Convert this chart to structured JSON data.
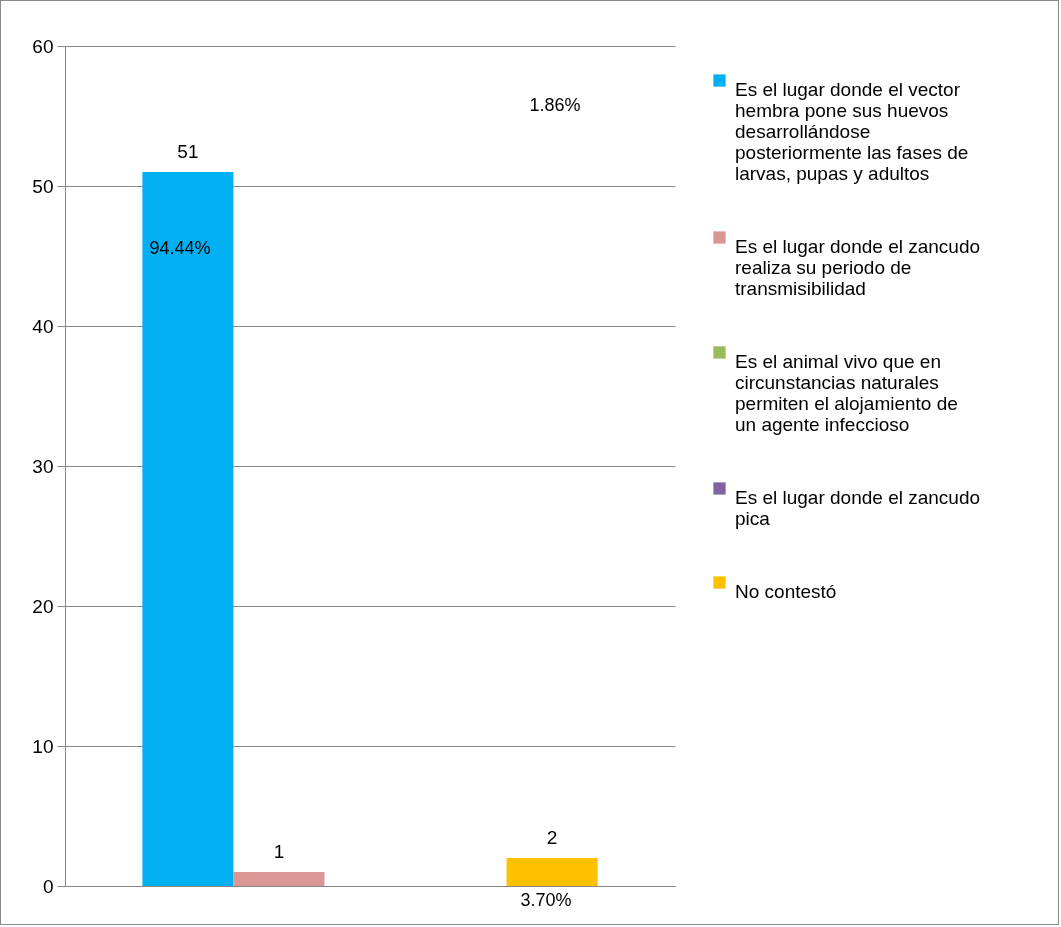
{
  "chart_data": {
    "type": "bar",
    "categories": [
      null
    ],
    "series": [
      {
        "name": "Es el lugar donde el vector hembra pone sus huevos desarrollándose posteriormente las fases de larvas, pupas y adultos",
        "color": "#00b0f0",
        "values": [
          51
        ],
        "value_labels": [
          "51"
        ]
      },
      {
        "name": "Es el lugar donde el zancudo realiza su periodo de transmisibilidad",
        "color": "#d99694",
        "values": [
          1
        ],
        "value_labels": [
          "1"
        ]
      },
      {
        "name": "Es el animal vivo que en circunstancias naturales permiten el alojamiento de un agente infeccioso",
        "color": "#9bbb59",
        "values": [
          0
        ],
        "value_labels": [
          null
        ]
      },
      {
        "name": "Es el lugar donde el zancudo pica",
        "color": "#8064a2",
        "values": [
          0
        ],
        "value_labels": [
          null
        ]
      },
      {
        "name": "No contestó",
        "color": "#ffc000",
        "values": [
          2
        ],
        "value_labels": [
          "2"
        ]
      }
    ],
    "ylim": [
      0,
      60
    ],
    "yticks": [
      0,
      10,
      20,
      30,
      40,
      50,
      60
    ],
    "grid": "y",
    "legend": "right",
    "annotations": [
      "94.44%",
      "1.86%",
      "3.70%"
    ]
  }
}
